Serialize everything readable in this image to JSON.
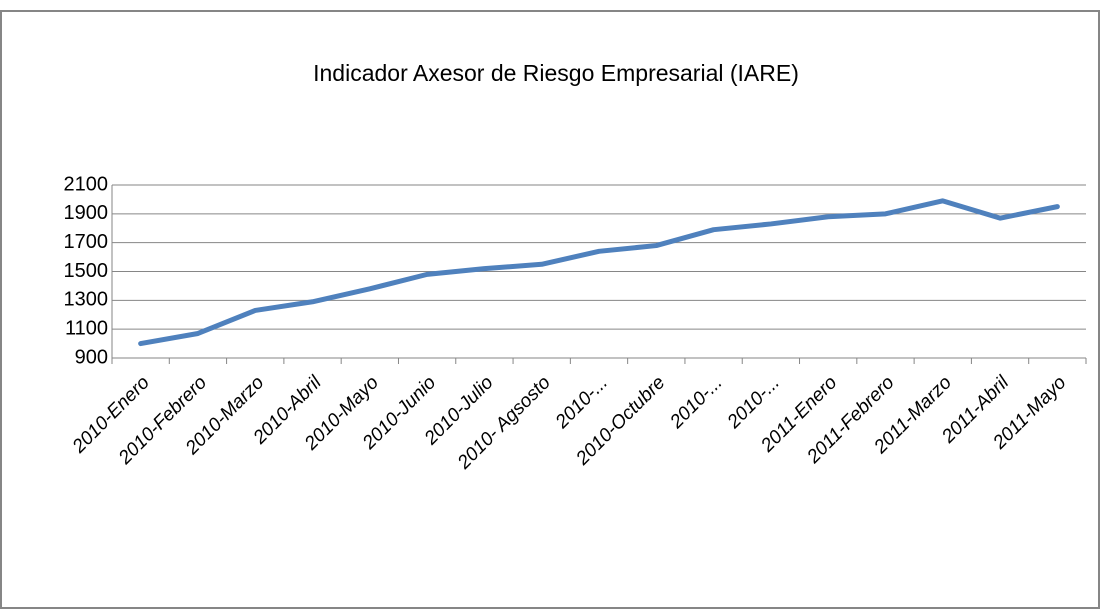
{
  "chart_data": {
    "type": "line",
    "title": "Indicador Axesor de Riesgo Empresarial (IARE)",
    "categories": [
      "2010-Enero",
      "2010-Febrero",
      "2010-Marzo",
      "2010-Abril",
      "2010-Mayo",
      "2010-Junio",
      "2010-Julio",
      "2010- Agsosto",
      "2010-...",
      "2010-Octubre",
      "2010-...",
      "2010-...",
      "2011-Enero",
      "2011-Febrero",
      "2011-Marzo",
      "2011-Abril",
      "2011-Mayo"
    ],
    "values": [
      1000,
      1070,
      1230,
      1290,
      1380,
      1480,
      1520,
      1550,
      1640,
      1680,
      1790,
      1830,
      1880,
      1900,
      1990,
      1870,
      1950
    ],
    "color": "#4f81bd",
    "ylim": [
      900,
      2100
    ],
    "yticks": [
      900,
      1100,
      1300,
      1500,
      1700,
      1900,
      2100
    ],
    "grid": true
  }
}
